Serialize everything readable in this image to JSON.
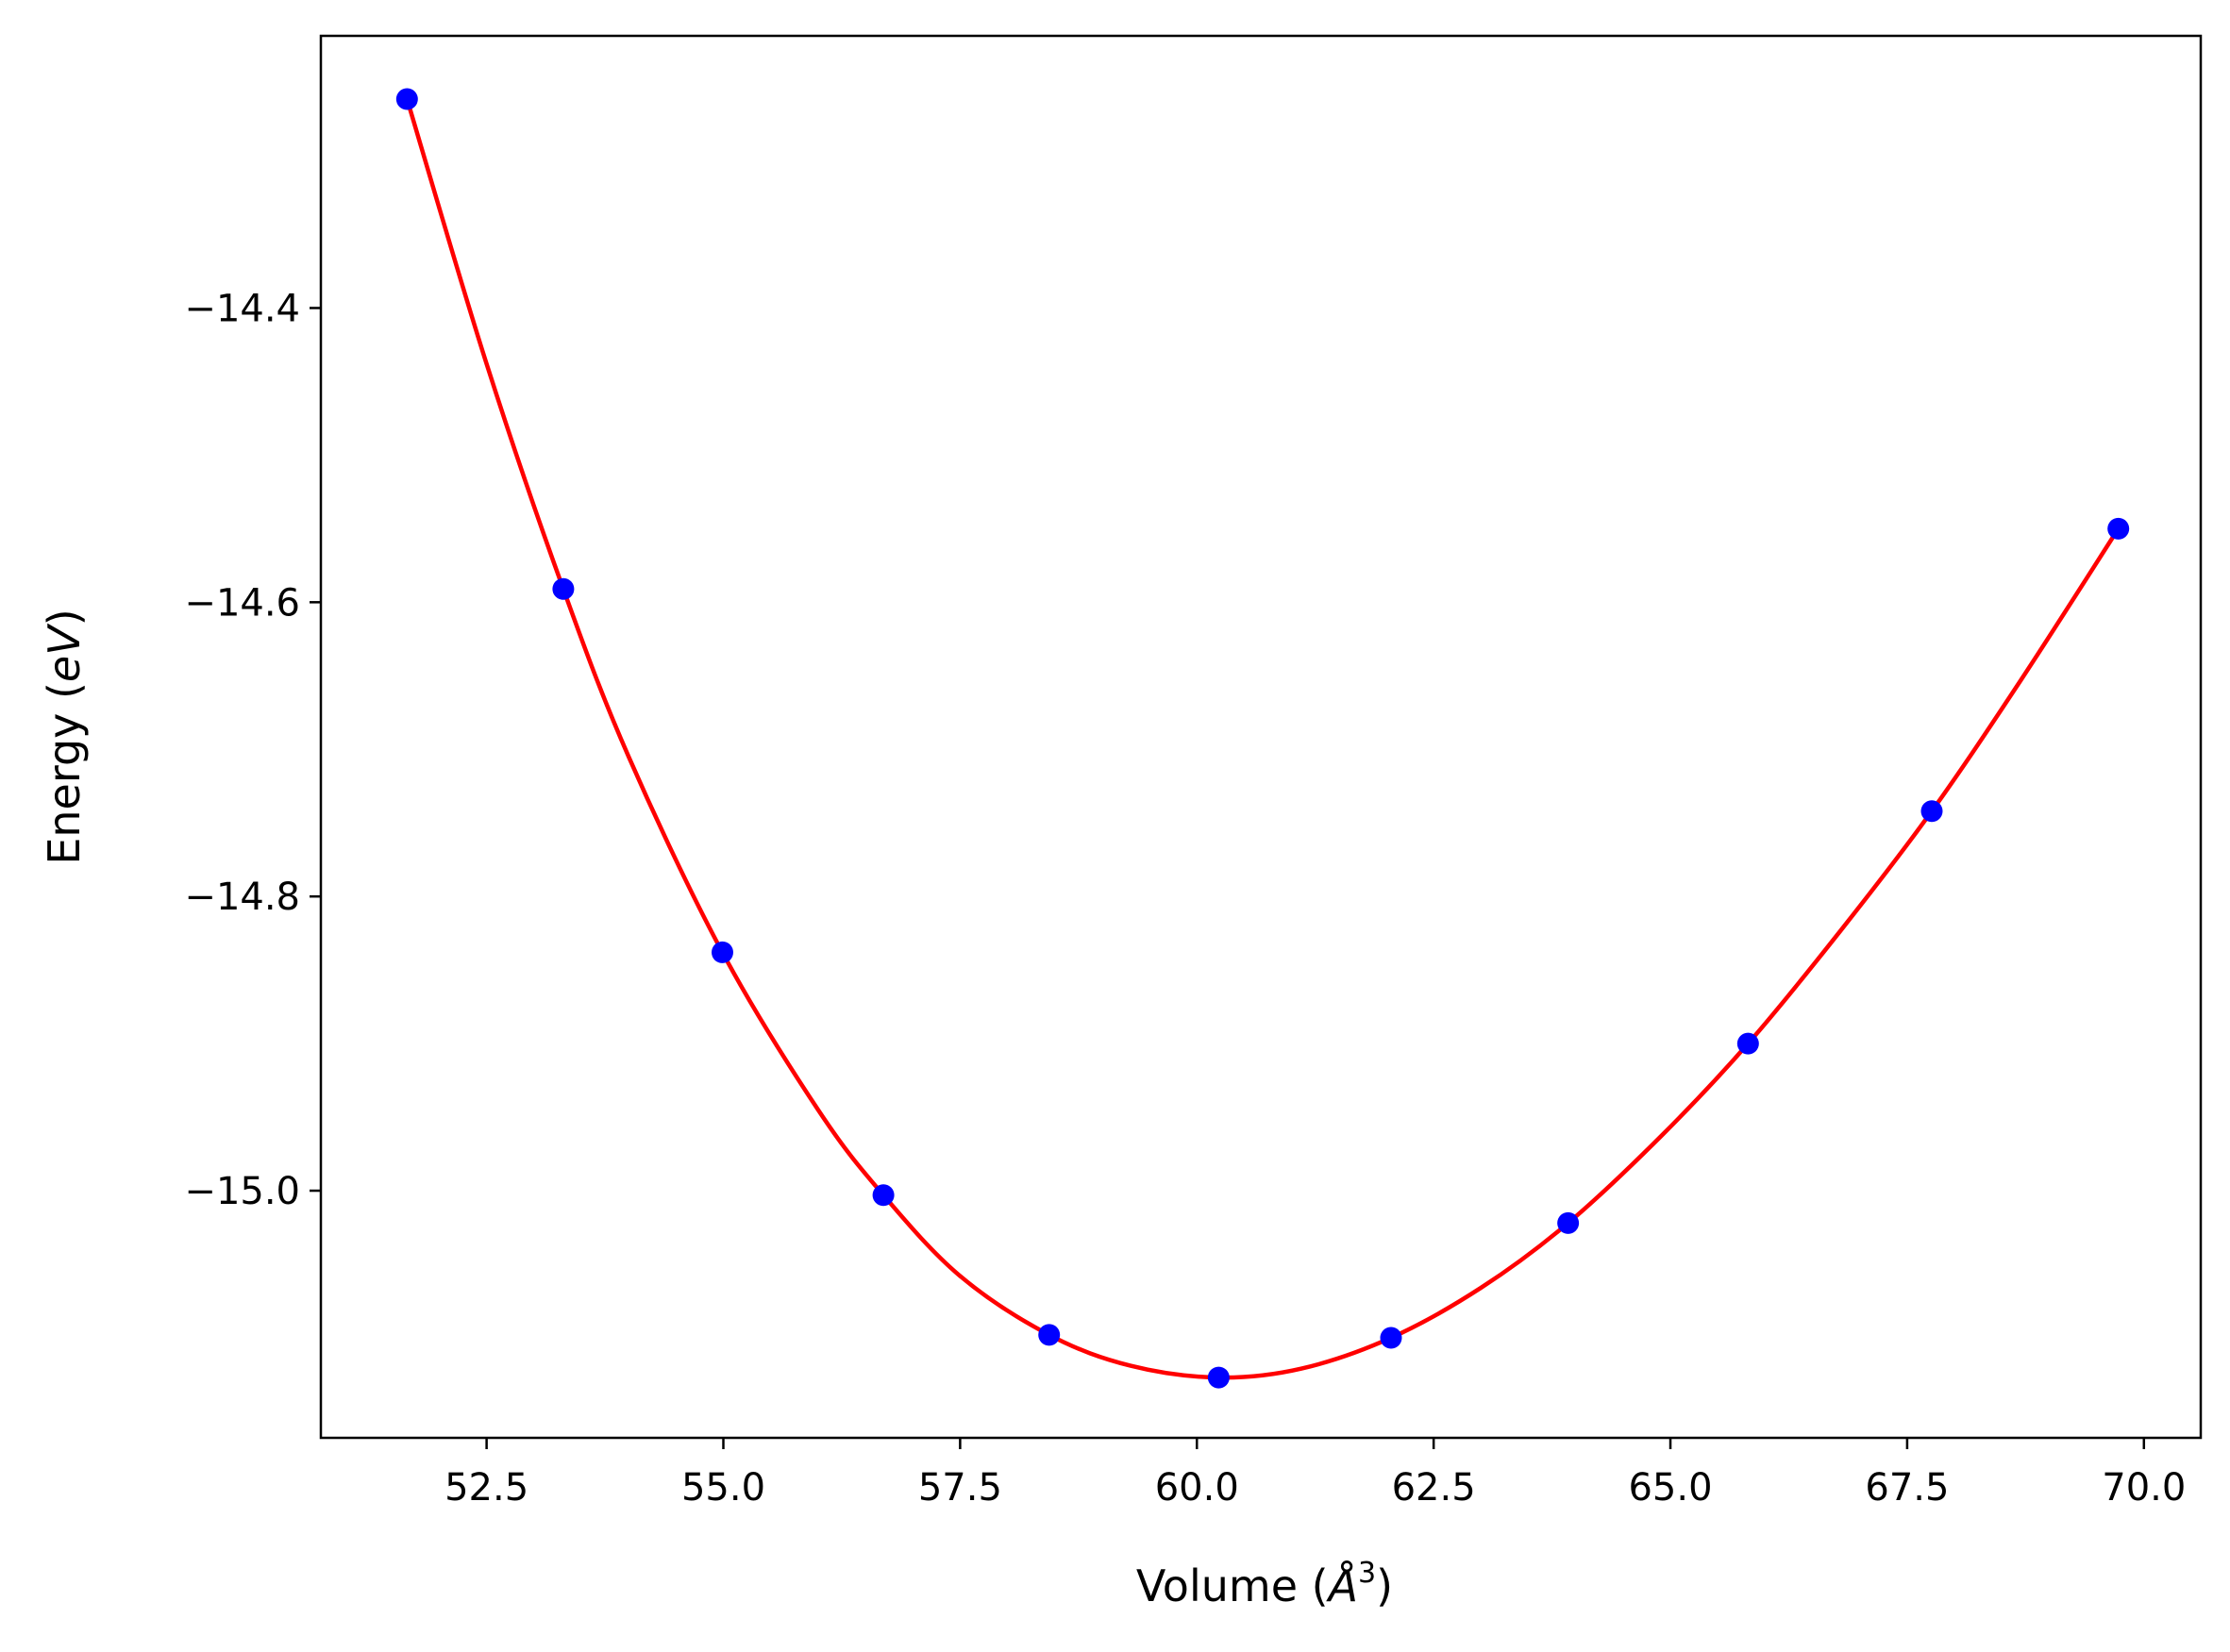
{
  "chart_data": {
    "type": "scatter",
    "title": "",
    "xlabel": "Volume (Å³)",
    "xlabel_parts": {
      "prefix": "Volume (",
      "unit": "Å",
      "exponent": "3",
      "suffix": ")"
    },
    "ylabel": "Energy (eV)",
    "ylabel_parts": {
      "prefix": "Energy (",
      "unit": "eV",
      "suffix": ")"
    },
    "xlim": [
      50.75,
      70.6
    ],
    "ylim": [
      -15.168,
      -14.215
    ],
    "x_ticks": [
      52.5,
      55.0,
      57.5,
      60.0,
      62.5,
      65.0,
      67.5,
      70.0
    ],
    "x_tick_labels": [
      "52.5",
      "55.0",
      "57.5",
      "60.0",
      "62.5",
      "65.0",
      "67.5",
      "70.0"
    ],
    "y_ticks": [
      -15.0,
      -14.8,
      -14.6,
      -14.4
    ],
    "y_tick_labels": [
      "−15.0",
      "−14.8",
      "−14.6",
      "−14.4"
    ],
    "grid": false,
    "legend": "none",
    "series": [
      {
        "kind": "points",
        "color": "#0000ff",
        "x": [
          51.66,
          53.31,
          54.99,
          56.69,
          58.44,
          60.23,
          62.05,
          63.92,
          65.82,
          67.76,
          69.73
        ],
        "y": [
          -14.258,
          -14.591,
          -14.838,
          -15.003,
          -15.098,
          -15.127,
          -15.1,
          -15.022,
          -14.9,
          -14.742,
          -14.55
        ]
      },
      {
        "kind": "fit",
        "color": "#ff0000",
        "x": [
          51.66,
          52.5,
          53.31,
          54.0,
          54.99,
          56.0,
          56.69,
          57.5,
          58.44,
          59.3,
          60.23,
          61.1,
          62.05,
          63.0,
          63.92,
          64.9,
          65.82,
          66.8,
          67.76,
          68.7,
          69.73
        ],
        "y": [
          -14.258,
          -14.438,
          -14.591,
          -14.705,
          -14.838,
          -14.945,
          -15.003,
          -15.058,
          -15.098,
          -15.119,
          -15.127,
          -15.121,
          -15.1,
          -15.066,
          -15.022,
          -14.963,
          -14.9,
          -14.823,
          -14.742,
          -14.653,
          -14.55
        ]
      }
    ]
  }
}
